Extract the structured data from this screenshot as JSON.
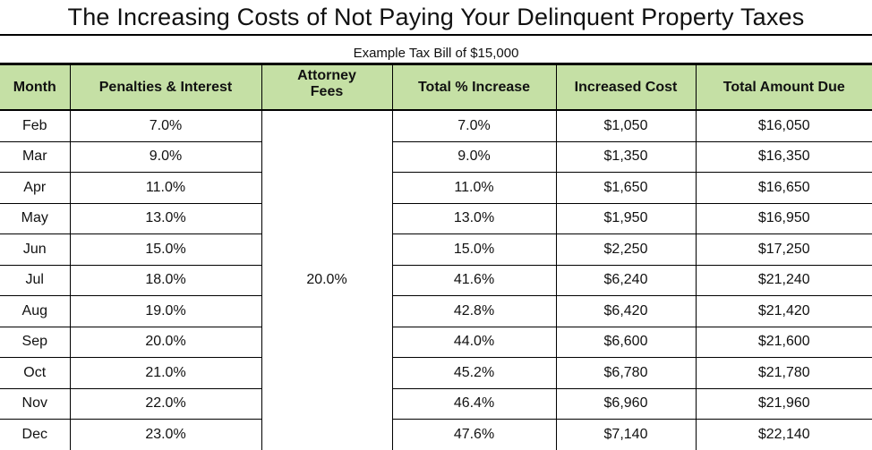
{
  "title": "The Increasing Costs of Not Paying Your Delinquent Property Taxes",
  "subtitle": "Example Tax Bill of $15,000",
  "columns": {
    "month": "Month",
    "penalties": "Penalties & Interest",
    "attorney": "Attorney\nFees",
    "total_pct": "Total % Increase",
    "increased": "Increased Cost",
    "total_due": "Total Amount Due"
  },
  "rows": [
    {
      "month": "Feb",
      "penalties": "7.0%",
      "attorney": "",
      "total_pct": "7.0%",
      "increased": "$1,050",
      "total_due": "$16,050"
    },
    {
      "month": "Mar",
      "penalties": "9.0%",
      "attorney": "",
      "total_pct": "9.0%",
      "increased": "$1,350",
      "total_due": "$16,350"
    },
    {
      "month": "Apr",
      "penalties": "11.0%",
      "attorney": "",
      "total_pct": "11.0%",
      "increased": "$1,650",
      "total_due": "$16,650"
    },
    {
      "month": "May",
      "penalties": "13.0%",
      "attorney": "",
      "total_pct": "13.0%",
      "increased": "$1,950",
      "total_due": "$16,950"
    },
    {
      "month": "Jun",
      "penalties": "15.0%",
      "attorney": "",
      "total_pct": "15.0%",
      "increased": "$2,250",
      "total_due": "$17,250"
    },
    {
      "month": "Jul",
      "penalties": "18.0%",
      "attorney": "20.0%",
      "total_pct": "41.6%",
      "increased": "$6,240",
      "total_due": "$21,240"
    },
    {
      "month": "Aug",
      "penalties": "19.0%",
      "attorney": "",
      "total_pct": "42.8%",
      "increased": "$6,420",
      "total_due": "$21,420"
    },
    {
      "month": "Sep",
      "penalties": "20.0%",
      "attorney": "",
      "total_pct": "44.0%",
      "increased": "$6,600",
      "total_due": "$21,600"
    },
    {
      "month": "Oct",
      "penalties": "21.0%",
      "attorney": "",
      "total_pct": "45.2%",
      "increased": "$6,780",
      "total_due": "$21,780"
    },
    {
      "month": "Nov",
      "penalties": "22.0%",
      "attorney": "",
      "total_pct": "46.4%",
      "increased": "$6,960",
      "total_due": "$21,960"
    },
    {
      "month": "Dec",
      "penalties": "23.0%",
      "attorney": "",
      "total_pct": "47.6%",
      "increased": "$7,140",
      "total_due": "$22,140"
    }
  ],
  "colors": {
    "header_fill": "#c5e0a5",
    "grid": "#000000"
  }
}
